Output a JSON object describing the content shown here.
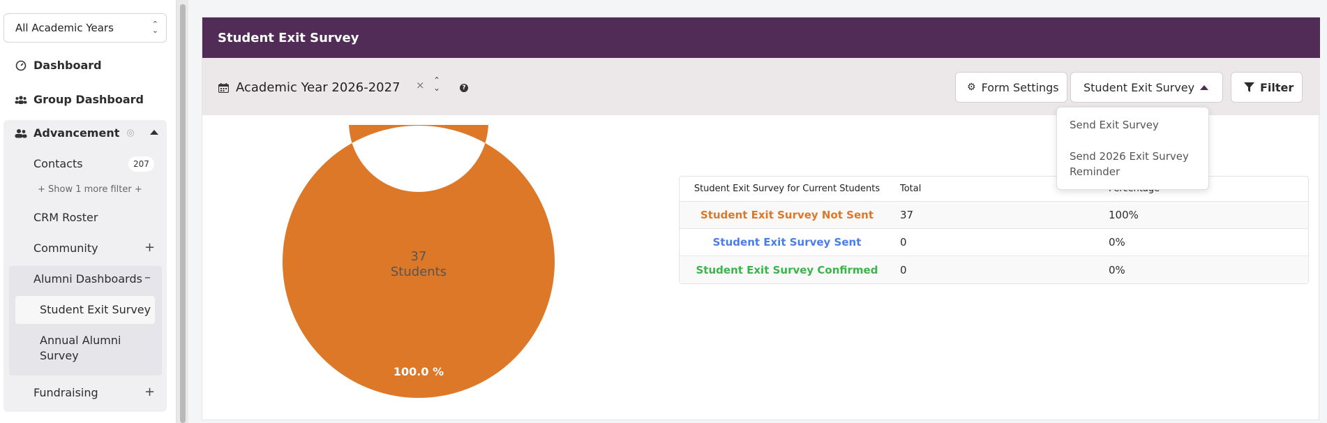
{
  "sidebar": {
    "year_select": "All Academic Years",
    "dashboard": "Dashboard",
    "group_dashboard": "Group Dashboard",
    "advancement": "Advancement",
    "contacts": "Contacts",
    "contacts_count": "207",
    "more_filter": "+ Show 1 more filter +",
    "crm_roster": "CRM Roster",
    "community": "Community",
    "alumni_dashboards": "Alumni Dashboards",
    "student_exit_survey": "Student Exit Survey",
    "annual_alumni_survey": "Annual Alumni Survey",
    "fundraising": "Fundraising"
  },
  "card": {
    "title": "Student Exit Survey",
    "academic_year": "Academic Year 2026-2027",
    "form_settings": "Form Settings",
    "survey_dropdown": "Student Exit Survey",
    "filter": "Filter"
  },
  "dropdown": {
    "options": [
      "Send Exit Survey",
      "Send 2026 Exit Survey Reminder"
    ]
  },
  "colors": {
    "header": "#512c57",
    "not_sent": "#dc7828",
    "sent": "#4a7de8",
    "confirmed": "#3bb54a"
  },
  "table": {
    "headers": [
      "Student Exit Survey for Current Students",
      "Total",
      "Percentage"
    ],
    "rows": [
      {
        "label": "Student Exit Survey Not Sent",
        "total": "37",
        "percentage": "100%"
      },
      {
        "label": "Student Exit Survey Sent",
        "total": "0",
        "percentage": "0%"
      },
      {
        "label": "Student Exit Survey Confirmed",
        "total": "0",
        "percentage": "0%"
      }
    ]
  },
  "chart_data": {
    "type": "pie",
    "categories": [
      "Student Exit Survey Not Sent",
      "Student Exit Survey Sent",
      "Student Exit Survey Confirmed"
    ],
    "values": [
      37,
      0,
      0
    ],
    "center_value": "37",
    "center_label": "Students",
    "slice_label": "100.0 %"
  }
}
